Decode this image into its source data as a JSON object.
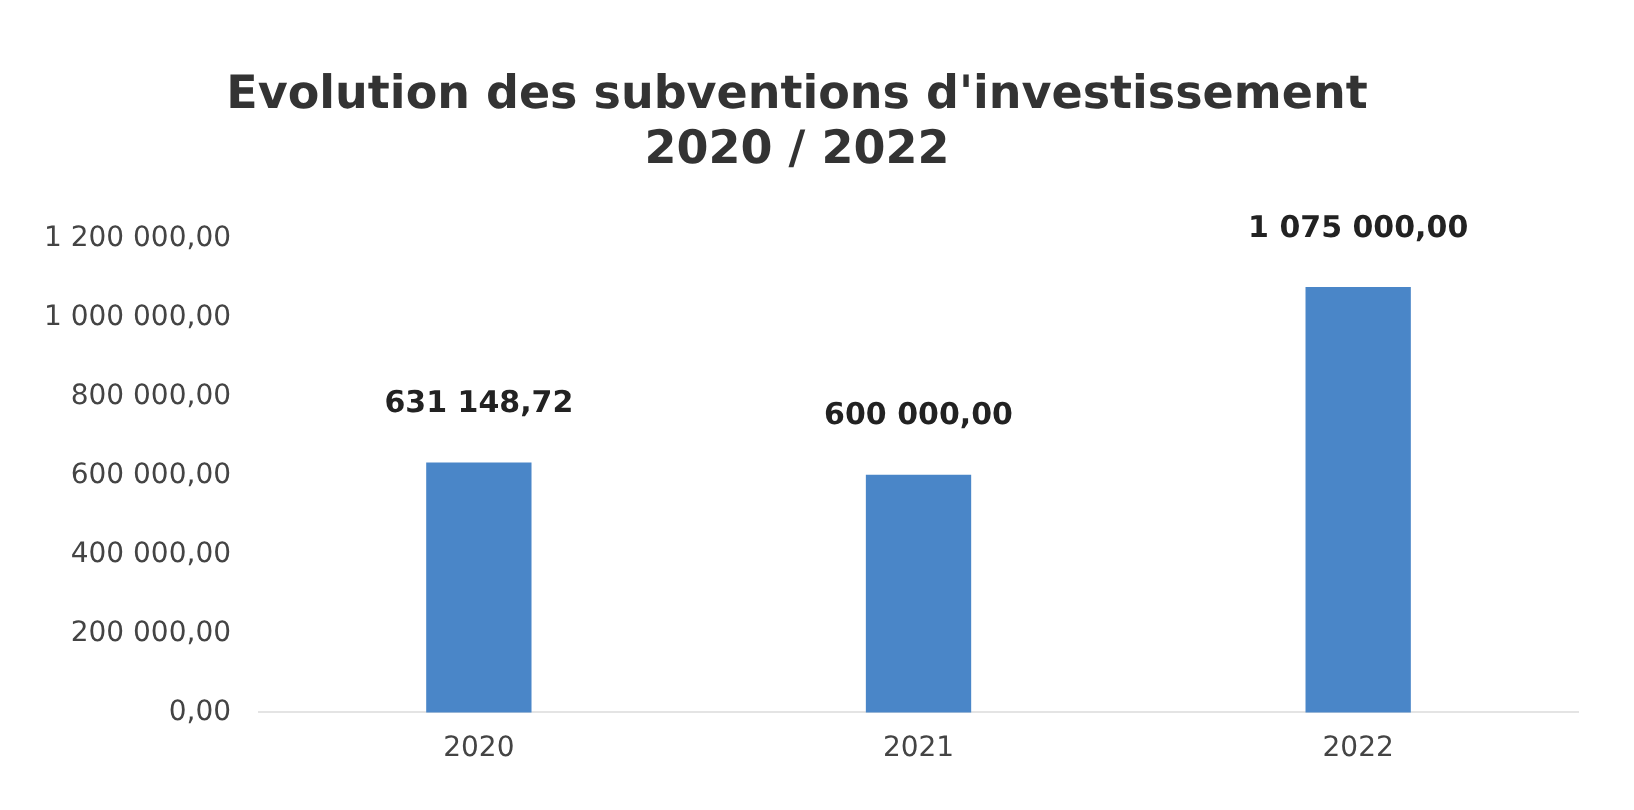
{
  "chart_data": {
    "type": "bar",
    "title": "Evolution des subventions d'investissement\n2020 / 2022",
    "categories": [
      "2020",
      "2021",
      "2022"
    ],
    "values": [
      631148.72,
      600000,
      1075000
    ],
    "value_labels": [
      "631 148,72",
      "600 000,00",
      "1 075 000,00"
    ],
    "color": "#4a86c8",
    "ylim": [
      0,
      1200000
    ],
    "yticks": [
      {
        "value": 0,
        "label": "0,00"
      },
      {
        "value": 200000,
        "label": "200 000,00"
      },
      {
        "value": 400000,
        "label": "400 000,00"
      },
      {
        "value": 600000,
        "label": "600 000,00"
      },
      {
        "value": 800000,
        "label": "800 000,00"
      },
      {
        "value": 1000000,
        "label": "1 000 000,00"
      },
      {
        "value": 1200000,
        "label": "1 200 000,00"
      }
    ],
    "grid": false,
    "legend": false
  }
}
